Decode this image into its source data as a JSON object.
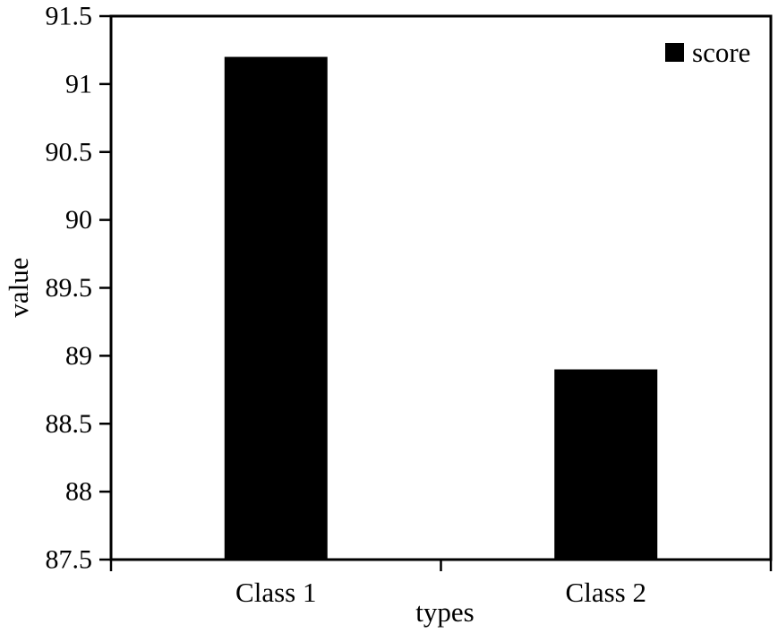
{
  "chart_data": {
    "type": "bar",
    "categories": [
      "Class 1",
      "Class 2"
    ],
    "series": [
      {
        "name": "score",
        "values": [
          91.2,
          88.9
        ]
      }
    ],
    "title": "",
    "xlabel": "types",
    "ylabel": "value",
    "ylim": [
      87.5,
      91.5
    ],
    "ytick_step": 0.5,
    "ytick_labels": [
      "87.5",
      "88",
      "88.5",
      "89",
      "89.5",
      "90",
      "90.5",
      "91",
      "91.5"
    ],
    "grid": false,
    "legend": {
      "position": "top-right",
      "entries": [
        "score"
      ]
    },
    "colors": {
      "bar": "#000000",
      "axis": "#000000",
      "text": "#000000",
      "background": "#ffffff"
    }
  }
}
